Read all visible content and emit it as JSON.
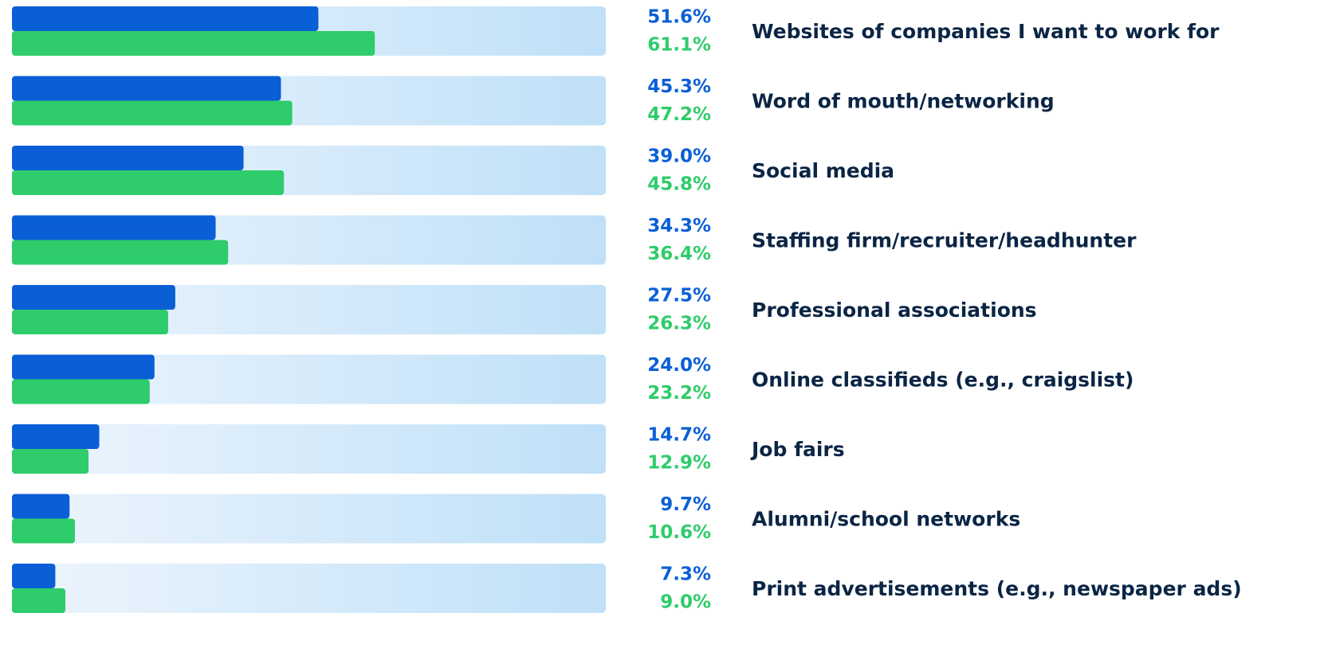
{
  "chart_data": {
    "type": "bar",
    "orientation": "horizontal",
    "categories": [
      "Websites of companies I want to work for",
      "Word of mouth/networking",
      "Social media",
      "Staffing firm/recruiter/headhunter",
      "Professional associations",
      "Online classifieds (e.g., craigslist)",
      "Job fairs",
      "Alumni/school networks",
      "Print advertisements (e.g., newspaper ads)"
    ],
    "series": [
      {
        "color": "#0a5fd6",
        "values": [
          51.6,
          45.3,
          39.0,
          34.3,
          27.5,
          24.0,
          14.7,
          9.7,
          7.3
        ],
        "value_labels": [
          "51.6%",
          "45.3%",
          "39.0%",
          "34.3%",
          "27.5%",
          "24.0%",
          "14.7%",
          "9.7%",
          "7.3%"
        ]
      },
      {
        "color": "#2ecc6a",
        "values": [
          61.1,
          47.2,
          45.8,
          36.4,
          26.3,
          23.2,
          12.9,
          10.6,
          9.0
        ],
        "value_labels": [
          "61.1%",
          "47.2%",
          "45.8%",
          "36.4%",
          "26.3%",
          "23.2%",
          "12.9%",
          "10.6%",
          "9.0%"
        ]
      }
    ],
    "xlim": [
      0,
      100
    ]
  }
}
